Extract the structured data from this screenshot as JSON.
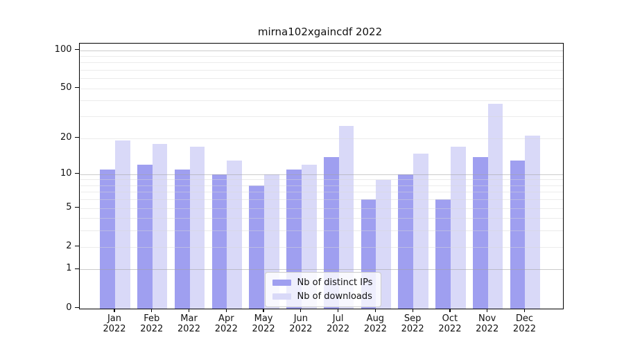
{
  "chart_data": {
    "type": "bar",
    "title": "mirna102xgaincdf 2022",
    "categories": [
      "Jan",
      "Feb",
      "Mar",
      "Apr",
      "May",
      "Jun",
      "Jul",
      "Aug",
      "Sep",
      "Oct",
      "Nov",
      "Dec"
    ],
    "category_year": "2022",
    "series": [
      {
        "name": "Nb of distinct IPs",
        "color": "#9f9ff0",
        "values": [
          11,
          12,
          11,
          10,
          8,
          11,
          14,
          6,
          10,
          6,
          14,
          13
        ]
      },
      {
        "name": "Nb of downloads",
        "color": "#d9d9f8",
        "values": [
          19,
          18,
          17,
          13,
          10,
          12,
          25,
          9,
          15,
          17,
          38,
          21
        ]
      }
    ],
    "yscale": "log1p",
    "ylim": [
      0,
      113
    ],
    "yticks": [
      0,
      1,
      2,
      5,
      10,
      20,
      50,
      100
    ],
    "ytick_labels": [
      "0",
      "1",
      "2",
      "5",
      "10",
      "20",
      "50",
      "100"
    ],
    "grid_major": [
      1,
      10,
      100
    ],
    "grid_minor": [
      2,
      3,
      4,
      5,
      6,
      7,
      8,
      9,
      20,
      30,
      40,
      50,
      60,
      70,
      80,
      90
    ],
    "legend_position": "lower-center-left",
    "xlabel": "",
    "ylabel": ""
  },
  "legend": {
    "items": [
      {
        "label": "Nb of distinct IPs"
      },
      {
        "label": "Nb of downloads"
      }
    ]
  },
  "colors": {
    "ips": "#9f9ff0",
    "downloads": "#d9d9f8",
    "grid_major": "rgba(160,160,160,0.55)",
    "grid_minor": "rgba(215,215,215,0.5)",
    "spine": "#000000"
  }
}
